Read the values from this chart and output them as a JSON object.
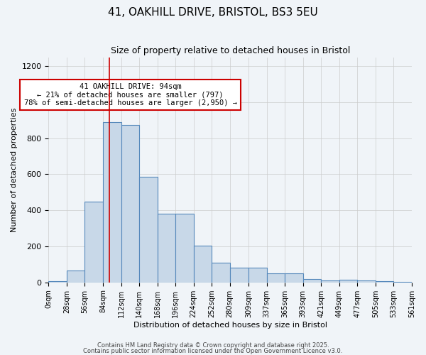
{
  "title1": "41, OAKHILL DRIVE, BRISTOL, BS3 5EU",
  "title2": "Size of property relative to detached houses in Bristol",
  "xlabel": "Distribution of detached houses by size in Bristol",
  "ylabel": "Number of detached properties",
  "bin_edges": [
    0,
    28,
    56,
    84,
    112,
    140,
    168,
    196,
    224,
    252,
    280,
    309,
    337,
    365,
    393,
    421,
    449,
    477,
    505,
    533,
    561
  ],
  "bar_heights": [
    5,
    65,
    450,
    890,
    875,
    585,
    380,
    380,
    205,
    110,
    80,
    80,
    50,
    50,
    20,
    10,
    15,
    10,
    5,
    3
  ],
  "bar_color": "#c8d8e8",
  "bar_edge_color": "#5588bb",
  "bar_edge_width": 0.8,
  "grid_color": "#cccccc",
  "background_color": "#f0f4f8",
  "red_line_x": 94,
  "red_line_color": "#cc0000",
  "annotation_text": "41 OAKHILL DRIVE: 94sqm\n← 21% of detached houses are smaller (797)\n78% of semi-detached houses are larger (2,950) →",
  "annotation_box_color": "#ffffff",
  "annotation_box_edge": "#cc0000",
  "ylim": [
    0,
    1250
  ],
  "yticks": [
    0,
    200,
    400,
    600,
    800,
    1000,
    1200
  ],
  "footer1": "Contains HM Land Registry data © Crown copyright and database right 2025.",
  "footer2": "Contains public sector information licensed under the Open Government Licence v3.0."
}
